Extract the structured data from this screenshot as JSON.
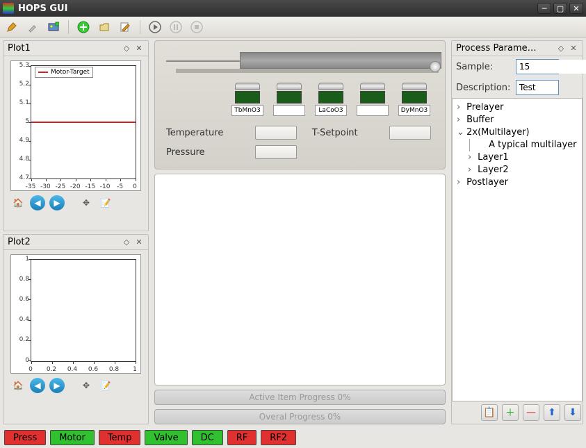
{
  "window_title": "HOPS GUI",
  "toolbar": {
    "items": [
      "edit",
      "eyedrop",
      "image",
      "sep",
      "add",
      "save",
      "edit2",
      "sep",
      "play",
      "pause",
      "stop"
    ]
  },
  "plot1": {
    "title": "Plot1",
    "legend_label": "Motor-Target",
    "series_color": "#cc2020",
    "y_ticks": [
      4.7,
      4.8,
      4.9,
      5.0,
      5.1,
      5.2,
      5.3
    ],
    "x_ticks": [
      -35,
      -30,
      -25,
      -20,
      -15,
      -10,
      -5,
      0
    ],
    "hline_value": 5.0,
    "ylim": [
      4.7,
      5.3
    ],
    "xlim": [
      -35,
      0
    ]
  },
  "plot2": {
    "title": "Plot2",
    "y_ticks": [
      0.0,
      0.2,
      0.4,
      0.6,
      0.8,
      1.0
    ],
    "x_ticks": [
      0.0,
      0.2,
      0.4,
      0.6,
      0.8,
      1.0
    ],
    "ylim": [
      0.0,
      1.0
    ],
    "xlim": [
      0.0,
      1.0
    ]
  },
  "deposition": {
    "targets": [
      {
        "label": "TbMnO3"
      },
      {
        "label": ""
      },
      {
        "label": "LaCoO3"
      },
      {
        "label": ""
      },
      {
        "label": "DyMnO3"
      }
    ],
    "readouts": {
      "temperature_label": "Temperature",
      "tsetpoint_label": "T-Setpoint",
      "pressure_label": "Pressure"
    }
  },
  "progress": {
    "active_label": "Active Item Progress 0%",
    "overall_label": "Overal Progress 0%"
  },
  "process_panel": {
    "title": "Process Parame…",
    "sample_label": "Sample:",
    "sample_value": "15",
    "desc_label": "Description:",
    "desc_value": "Test",
    "tree": [
      {
        "label": "Prelayer",
        "type": "parent"
      },
      {
        "label": "Buffer",
        "type": "parent"
      },
      {
        "label": "2x(Multilayer)",
        "type": "parent-open"
      },
      {
        "label": "A typical multilayer",
        "type": "child2"
      },
      {
        "label": "Layer1",
        "type": "child"
      },
      {
        "label": "Layer2",
        "type": "child"
      },
      {
        "label": "Postlayer",
        "type": "parent"
      }
    ]
  },
  "status_buttons": [
    {
      "label": "Press",
      "color": "red"
    },
    {
      "label": "Motor",
      "color": "green"
    },
    {
      "label": "Temp",
      "color": "red"
    },
    {
      "label": "Valve",
      "color": "green"
    },
    {
      "label": "DC",
      "color": "green"
    },
    {
      "label": "RF",
      "color": "red"
    },
    {
      "label": "RF2",
      "color": "red"
    }
  ]
}
